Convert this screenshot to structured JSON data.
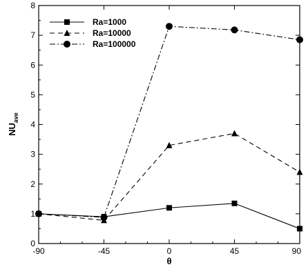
{
  "chart_data": {
    "type": "line",
    "title": "",
    "xlabel": "θ",
    "ylabel": "NU",
    "ylabel_sub": "ave",
    "x": [
      -90,
      -45,
      0,
      45,
      90
    ],
    "xlim": [
      -90,
      90
    ],
    "ylim": [
      0,
      8
    ],
    "xticks": [
      -90,
      -45,
      0,
      45,
      90
    ],
    "yticks": [
      0,
      1,
      2,
      3,
      4,
      5,
      6,
      7,
      8
    ],
    "grid": false,
    "legend_position": "top-left",
    "series": [
      {
        "name": "Ra=1000",
        "values": [
          1.0,
          0.9,
          1.2,
          1.35,
          0.5
        ],
        "marker": "square",
        "dash": "solid",
        "color": "#000000"
      },
      {
        "name": "Ra=10000",
        "values": [
          1.0,
          0.78,
          3.3,
          3.7,
          2.4
        ],
        "marker": "triangle",
        "dash": "dashed",
        "color": "#000000"
      },
      {
        "name": "Ra=100000",
        "values": [
          1.0,
          0.88,
          7.3,
          7.18,
          6.85
        ],
        "marker": "circle",
        "dash": "dashdot",
        "color": "#000000"
      }
    ]
  }
}
